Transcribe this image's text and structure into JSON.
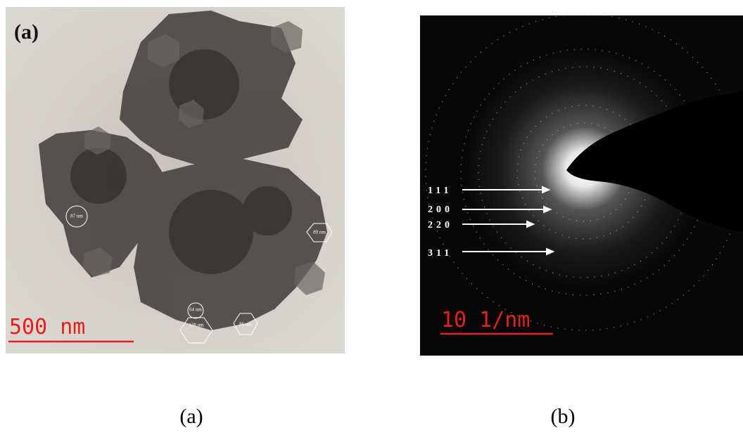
{
  "panel_a": {
    "label": "(a)",
    "sizes": [
      "87 nm",
      "89 nm",
      "64 nm",
      "138 nm",
      "86 nm"
    ],
    "scale_bar": "500 nm"
  },
  "panel_b": {
    "planes": [
      "111",
      "200",
      "220",
      "311"
    ],
    "scale_bar": "10 1/nm"
  },
  "captions": [
    "(a)",
    "(b)"
  ]
}
